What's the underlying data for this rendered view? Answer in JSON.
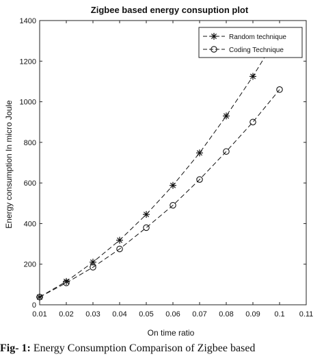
{
  "chart_data": {
    "type": "line",
    "title": "Zigbee based energy consuption plot",
    "xlabel": "On time ratio",
    "ylabel": "Energy consumption In micro Joule",
    "xlim": [
      0.01,
      0.11
    ],
    "ylim": [
      0,
      1400
    ],
    "xticks": [
      "0.01",
      "0.02",
      "0.03",
      "0.04",
      "0.05",
      "0.06",
      "0.07",
      "0.08",
      "0.09",
      "0.1",
      "0.11"
    ],
    "yticks": [
      "0",
      "200",
      "400",
      "600",
      "800",
      "1000",
      "1200",
      "1400"
    ],
    "x": [
      0.01,
      0.02,
      0.03,
      0.04,
      0.05,
      0.06,
      0.07,
      0.08,
      0.09,
      0.1
    ],
    "series": [
      {
        "name": "Random technique",
        "marker": "asterisk",
        "line": "dashed",
        "values": [
          38,
          115,
          210,
          318,
          445,
          588,
          748,
          930,
          1125,
          1340
        ]
      },
      {
        "name": "Coding Technique",
        "marker": "circle",
        "line": "dashed",
        "values": [
          38,
          108,
          185,
          275,
          380,
          490,
          617,
          755,
          900,
          1060
        ]
      }
    ],
    "legend_position": "top-right",
    "grid": false
  },
  "caption": {
    "label": "Fig- 1:",
    "text": " Energy Consumption Comparison of Zigbee based"
  }
}
